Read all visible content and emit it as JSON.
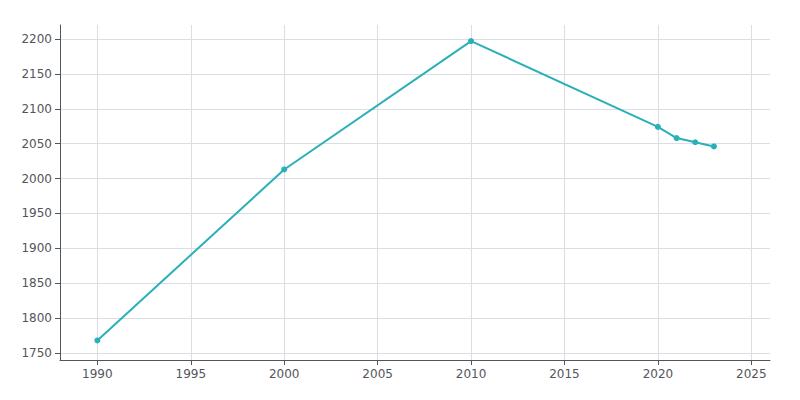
{
  "chart_data": {
    "type": "line",
    "x": [
      1990,
      2000,
      2010,
      2020,
      2021,
      2022,
      2023
    ],
    "values": [
      1768,
      2013,
      2197,
      2074,
      2058,
      2052,
      2046
    ],
    "color": "#2ab0b8",
    "marker": "circle",
    "xlim": [
      1988,
      2026
    ],
    "ylim": [
      1740,
      2220
    ],
    "xticks": [
      1990,
      1995,
      2000,
      2005,
      2010,
      2015,
      2020,
      2025
    ],
    "yticks": [
      1750,
      1800,
      1850,
      1900,
      1950,
      2000,
      2050,
      2100,
      2150,
      2200
    ],
    "grid": true
  }
}
